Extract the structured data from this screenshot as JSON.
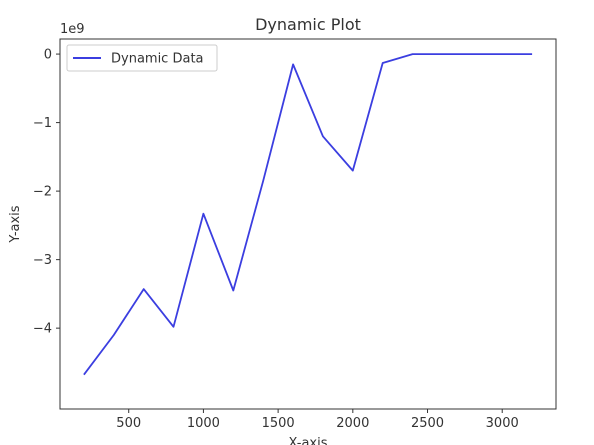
{
  "chart_data": {
    "type": "line",
    "title": "Dynamic Plot",
    "xlabel": "X-axis",
    "ylabel": "Y-axis",
    "y_scale_note": "1e9",
    "x_ticks": [
      500,
      1000,
      1500,
      2000,
      2500,
      3000
    ],
    "y_ticks": [
      0,
      -1,
      -2,
      -3,
      -4
    ],
    "xlim": [
      40,
      3360
    ],
    "ylim": [
      -5.18,
      0.22
    ],
    "grid": false,
    "legend_position": "top-left",
    "series": [
      {
        "name": "Dynamic Data",
        "color": "#3b3ee0",
        "x": [
          200,
          400,
          600,
          800,
          1000,
          1200,
          1400,
          1600,
          1800,
          2000,
          2200,
          2400,
          2600,
          2800,
          3000,
          3200
        ],
        "y": [
          -4.68,
          -4.1,
          -3.43,
          -3.98,
          -2.33,
          -3.45,
          -1.85,
          -0.15,
          -1.2,
          -1.7,
          -0.13,
          0.0,
          0.0,
          0.0,
          0.0,
          0.0
        ]
      }
    ]
  }
}
